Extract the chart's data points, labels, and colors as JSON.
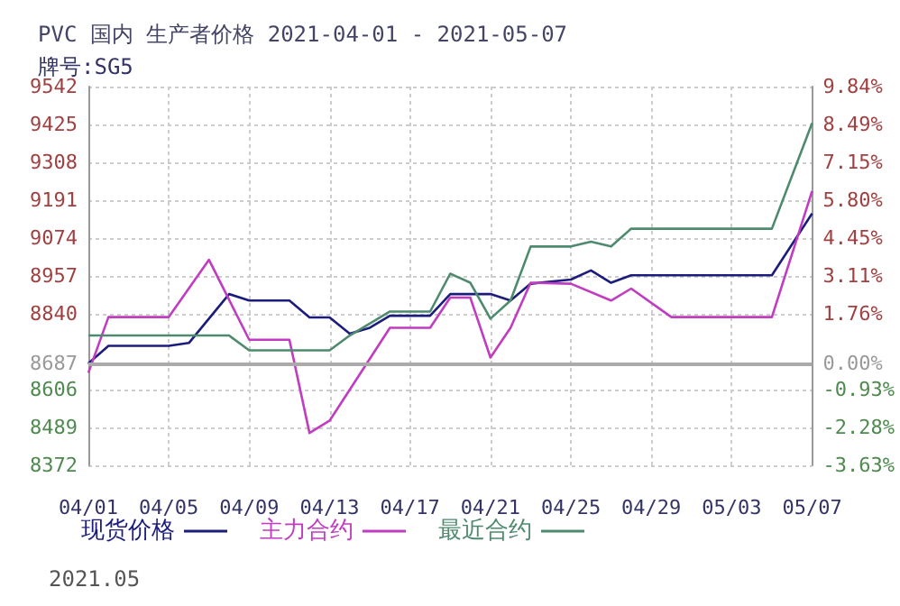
{
  "chart_data": {
    "type": "line",
    "title": "PVC 国内 生产者价格 2021-04-01 - 2021-05-07",
    "subtitle": "牌号:SG5",
    "series": [
      {
        "name": "现货价格",
        "color": "#1c1c7c",
        "x": [
          "--04-01",
          "--04-02",
          "--04-05",
          "--04-06",
          "--04-08",
          "--04-09",
          "--04-11",
          "--04-12",
          "--04-13",
          "--04-14",
          "--04-15",
          "--04-16",
          "--04-18",
          "--04-19",
          "--04-21",
          "--04-22",
          "--04-23",
          "--04-25",
          "--04-26",
          "--04-27",
          "--04-28",
          "--05-05",
          "--05-07"
        ],
        "values": [
          8687,
          8741,
          8741,
          8750,
          8901,
          8881,
          8881,
          8829,
          8829,
          8779,
          8797,
          8834,
          8834,
          8901,
          8901,
          8881,
          8933,
          8946,
          8974,
          8936,
          8959,
          8959,
          9150
        ]
      },
      {
        "name": "主力合约",
        "color": "#c03cc0",
        "x": [
          "--04-01",
          "--04-02",
          "--04-05",
          "--04-07",
          "--04-09",
          "--04-11",
          "--04-12",
          "--04-13",
          "--04-16",
          "--04-18",
          "--04-19",
          "--04-20",
          "--04-21",
          "--04-22",
          "--04-23",
          "--04-25",
          "--04-27",
          "--04-28",
          "--04-30",
          "--05-05",
          "--05-07"
        ],
        "values": [
          8658,
          8830,
          8830,
          9007,
          8760,
          8760,
          8472,
          8510,
          8797,
          8797,
          8890,
          8890,
          8705,
          8797,
          8936,
          8933,
          8881,
          8918,
          8830,
          8830,
          9219
        ]
      },
      {
        "name": "最近合约",
        "color": "#4e8a6e",
        "x": [
          "--04-01",
          "--04-08",
          "--04-09",
          "--04-13",
          "--04-14",
          "--04-16",
          "--04-18",
          "--04-19",
          "--04-20",
          "--04-21",
          "--04-22",
          "--04-23",
          "--04-25",
          "--04-26",
          "--04-27",
          "--04-28",
          "--05-05",
          "--05-07"
        ],
        "values": [
          8773,
          8773,
          8727,
          8727,
          8773,
          8847,
          8847,
          8964,
          8936,
          8825,
          8881,
          9048,
          9048,
          9063,
          9048,
          9103,
          9103,
          9429
        ]
      }
    ],
    "xlim": [
      "--04-01",
      "--05-07"
    ],
    "xticks": [
      {
        "value": "--04-01",
        "label": "04/01"
      },
      {
        "value": "--04-05",
        "label": "04/05"
      },
      {
        "value": "--04-09",
        "label": "04/09"
      },
      {
        "value": "--04-13",
        "label": "04/13"
      },
      {
        "value": "--04-17",
        "label": "04/17"
      },
      {
        "value": "--04-21",
        "label": "04/21"
      },
      {
        "value": "--04-25",
        "label": "04/25"
      },
      {
        "value": "--04-29",
        "label": "04/29"
      },
      {
        "value": "--05-03",
        "label": "05/03"
      },
      {
        "value": "--05-07",
        "label": "05/07"
      }
    ],
    "ylim": [
      8372,
      9542
    ],
    "yticks": [
      8372,
      8489,
      8606,
      8687,
      8840,
      8957,
      9074,
      9191,
      9308,
      9425,
      9542
    ],
    "y2lim": [
      -3.63,
      9.84
    ],
    "y2ticks": [
      {
        "value": -3.63,
        "label": "-3.63%"
      },
      {
        "value": -2.28,
        "label": "-2.28%"
      },
      {
        "value": -0.93,
        "label": "-0.93%"
      },
      {
        "value": 0,
        "label": "0.00%"
      },
      {
        "value": 1.76,
        "label": "1.76%"
      },
      {
        "value": 3.11,
        "label": "3.11%"
      },
      {
        "value": 4.45,
        "label": "4.45%"
      },
      {
        "value": 5.8,
        "label": "5.80%"
      },
      {
        "value": 7.15,
        "label": "7.15%"
      },
      {
        "value": 8.49,
        "label": "8.49%"
      },
      {
        "value": 9.84,
        "label": "9.84%"
      }
    ],
    "ref_lines": [
      {
        "axis": "y",
        "value": 8687,
        "label": null,
        "color": "#aaaaaa",
        "line_style": "solid"
      }
    ],
    "annotations": [
      "2021.05"
    ],
    "grid": true,
    "legend": "bottom",
    "marker": "none",
    "line_style": "solid"
  }
}
